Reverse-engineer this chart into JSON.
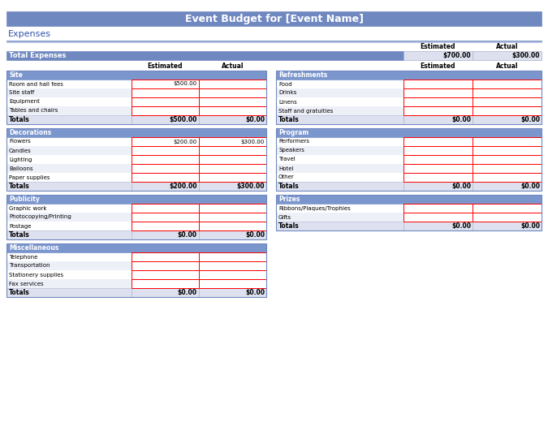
{
  "title": "Event Budget for [Event Name]",
  "title_bg": "#7088c0",
  "title_fg": "#ffffff",
  "expenses_label": "Expenses",
  "expenses_color": "#3355aa",
  "section_header_bg": "#7b96cc",
  "section_header_fg": "#ffffff",
  "total_bg": "#7088c0",
  "total_fg": "#ffffff",
  "total_row_bg": "#dde0ee",
  "row_bg_white": "#ffffff",
  "row_bg_alt": "#eef0f8",
  "input_border": "#ff0000",
  "input_bg": "#ffffff",
  "col_header_color": "#000000",
  "label_color": "#000000",
  "fig_bg": "#ffffff",
  "line_color": "#7088c0",
  "sections_left": [
    {
      "name": "Site",
      "rows": [
        "Room and hall fees",
        "Site staff",
        "Equipment",
        "Tables and chairs"
      ],
      "estimated": [
        "$500.00",
        "",
        "",
        ""
      ],
      "actual": [
        "",
        "",
        "",
        ""
      ],
      "total_est": "$500.00",
      "total_act": "$0.00"
    },
    {
      "name": "Decorations",
      "rows": [
        "Flowers",
        "Candles",
        "Lighting",
        "Balloons",
        "Paper supplies"
      ],
      "estimated": [
        "$200.00",
        "",
        "",
        "",
        ""
      ],
      "actual": [
        "$300.00",
        "",
        "",
        "",
        ""
      ],
      "total_est": "$200.00",
      "total_act": "$300.00"
    },
    {
      "name": "Publicity",
      "rows": [
        "Graphic work",
        "Photocopying/Printing",
        "Postage"
      ],
      "estimated": [
        "",
        "",
        ""
      ],
      "actual": [
        "",
        "",
        ""
      ],
      "total_est": "$0.00",
      "total_act": "$0.00"
    },
    {
      "name": "Miscellaneous",
      "rows": [
        "Telephone",
        "Transportation",
        "Stationery supplies",
        "Fax services"
      ],
      "estimated": [
        "",
        "",
        "",
        ""
      ],
      "actual": [
        "",
        "",
        "",
        ""
      ],
      "total_est": "$0.00",
      "total_act": "$0.00"
    }
  ],
  "sections_right": [
    {
      "name": "Refreshments",
      "rows": [
        "Food",
        "Drinks",
        "Linens",
        "Staff and gratuities"
      ],
      "estimated": [
        "",
        "",
        "",
        ""
      ],
      "actual": [
        "",
        "",
        "",
        ""
      ],
      "total_est": "$0.00",
      "total_act": "$0.00"
    },
    {
      "name": "Program",
      "rows": [
        "Performers",
        "Speakers",
        "Travel",
        "Hotel",
        "Other"
      ],
      "estimated": [
        "",
        "",
        "",
        "",
        ""
      ],
      "actual": [
        "",
        "",
        "",
        "",
        ""
      ],
      "total_est": "$0.00",
      "total_act": "$0.00"
    },
    {
      "name": "Prizes",
      "rows": [
        "Ribbons/Plaques/Trophies",
        "Gifts"
      ],
      "estimated": [
        "",
        ""
      ],
      "actual": [
        "",
        ""
      ],
      "total_est": "$0.00",
      "total_act": "$0.00"
    }
  ],
  "grand_total_est": "$700.00",
  "grand_total_act": "$300.00"
}
